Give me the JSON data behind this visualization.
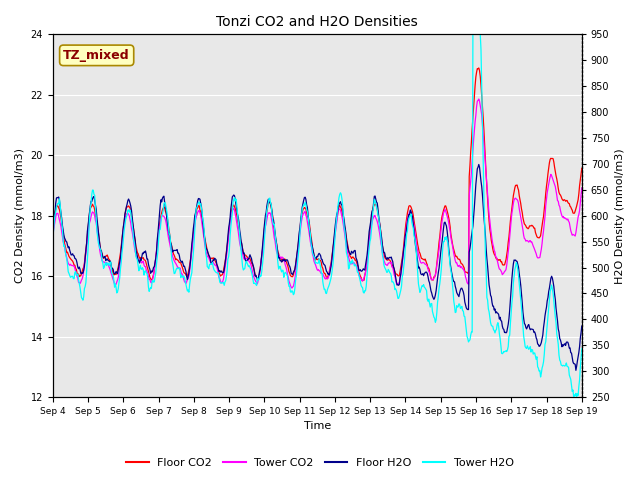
{
  "title": "Tonzi CO2 and H2O Densities",
  "xlabel": "Time",
  "ylabel_left": "CO2 Density (mmol/m3)",
  "ylabel_right": "H2O Density (mmol/m3)",
  "annotation": "TZ_mixed",
  "annotation_color": "#8B0000",
  "annotation_box_color": "#FFFFC0",
  "ylim_left": [
    12,
    24
  ],
  "ylim_right": [
    250,
    950
  ],
  "yticks_left": [
    12,
    14,
    16,
    18,
    20,
    22,
    24
  ],
  "yticks_right": [
    250,
    300,
    350,
    400,
    450,
    500,
    550,
    600,
    650,
    700,
    750,
    800,
    850,
    900,
    950
  ],
  "xtick_labels": [
    "Sep 4",
    "Sep 5",
    "Sep 6",
    "Sep 7",
    "Sep 8",
    "Sep 9",
    "Sep 10",
    "Sep 11",
    "Sep 12",
    "Sep 13",
    "Sep 14",
    "Sep 15",
    "Sep 16",
    "Sep 17",
    "Sep 18",
    "Sep 19"
  ],
  "colors": {
    "floor_co2": "#FF0000",
    "tower_co2": "#FF00FF",
    "floor_h2o": "#00008B",
    "tower_h2o": "#00FFFF"
  },
  "legend_labels": [
    "Floor CO2",
    "Tower CO2",
    "Floor H2O",
    "Tower H2O"
  ],
  "background_color": "#E8E8E8",
  "n_points": 720
}
